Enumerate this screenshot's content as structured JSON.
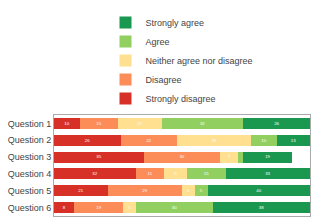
{
  "chart_data": {
    "type": "bar",
    "orientation": "horizontal",
    "stacked": true,
    "categories": [
      "Question 1",
      "Question 2",
      "Question 3",
      "Question 4",
      "Question 5",
      "Question 6"
    ],
    "series": [
      {
        "name": "Strongly disagree",
        "color": "#d73027",
        "values": [
          10,
          26,
          35,
          32,
          21,
          8
        ]
      },
      {
        "name": "Disagree",
        "color": "#fc8d59",
        "values": [
          15,
          22,
          30,
          11,
          29,
          19
        ]
      },
      {
        "name": "Neither agree nor disagree",
        "color": "#fee090",
        "values": [
          17,
          29,
          7,
          9,
          5,
          5
        ]
      },
      {
        "name": "Agree",
        "color": "#91cf60",
        "values": [
          32,
          10,
          2,
          15,
          5,
          30
        ],
        "value_labels": [
          "32",
          "10",
          null,
          "15",
          "5",
          "30"
        ]
      },
      {
        "name": "Strongly agree",
        "color": "#1a9850",
        "values": [
          26,
          13,
          19,
          33,
          40,
          38
        ]
      }
    ],
    "xlim": [
      0,
      100
    ],
    "data_labels": true,
    "tick_labels": "y",
    "grid": false,
    "legend": "top"
  }
}
